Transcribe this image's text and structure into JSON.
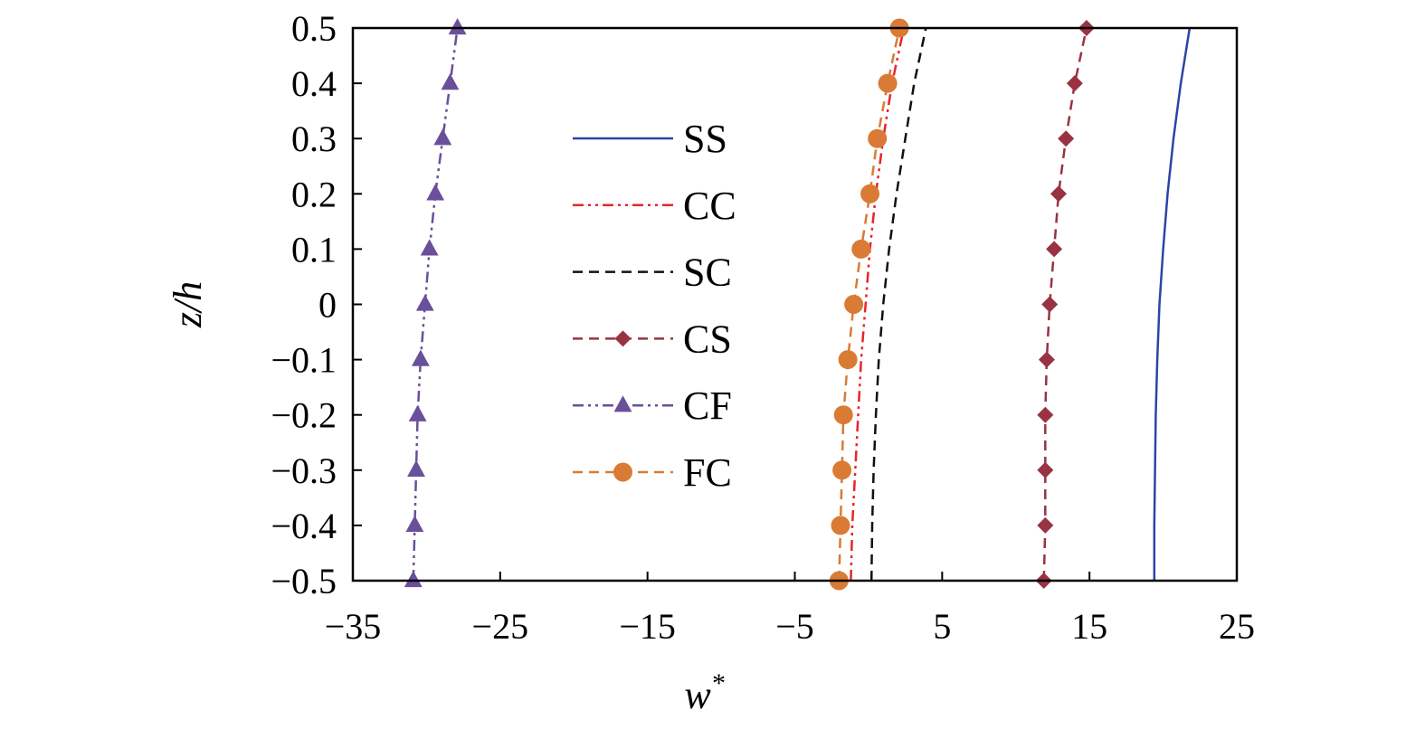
{
  "chart_data": {
    "type": "line",
    "title": "",
    "xlabel": "w",
    "xlabel_sup": "*",
    "ylabel": "z/h",
    "xlim": [
      -35,
      25
    ],
    "ylim": [
      -0.5,
      0.5
    ],
    "xticks": [
      -35,
      -25,
      -15,
      -5,
      5,
      15,
      25
    ],
    "xtick_labels": [
      "−35",
      "−25",
      "−15",
      "−5",
      "5",
      "15",
      "25"
    ],
    "yticks": [
      0.5,
      0.4,
      0.3,
      0.2,
      0.1,
      0,
      -0.1,
      -0.2,
      -0.3,
      -0.4,
      -0.5
    ],
    "ytick_labels": [
      "0.5",
      "0.4",
      "0.3",
      "0.2",
      "0.1",
      "0",
      "−0.1",
      "−0.2",
      "−0.3",
      "−0.4",
      "−0.5"
    ],
    "grid": false,
    "legend_position": "top-center",
    "series": [
      {
        "name": "SS",
        "color": "#2a46a4",
        "dash": "solid",
        "marker": "none",
        "x": [
          19.4,
          19.4,
          19.45,
          19.5,
          19.6,
          19.75,
          20.0,
          20.3,
          20.7,
          21.2,
          21.8
        ],
        "y": [
          -0.5,
          -0.4,
          -0.3,
          -0.2,
          -0.1,
          0,
          0.1,
          0.2,
          0.3,
          0.4,
          0.5
        ]
      },
      {
        "name": "CC",
        "color": "#e8242c",
        "dash": "dashdotdot",
        "marker": "none",
        "x": [
          -1.2,
          -1.1,
          -0.9,
          -0.7,
          -0.5,
          -0.2,
          0.1,
          0.5,
          1.0,
          1.6,
          2.4
        ],
        "y": [
          -0.5,
          -0.4,
          -0.3,
          -0.2,
          -0.1,
          0,
          0.1,
          0.2,
          0.3,
          0.4,
          0.5
        ]
      },
      {
        "name": "SC",
        "color": "#111111",
        "dash": "dashed",
        "marker": "none",
        "x": [
          0.2,
          0.25,
          0.35,
          0.5,
          0.7,
          1.0,
          1.4,
          1.9,
          2.5,
          3.1,
          3.9
        ],
        "y": [
          -0.5,
          -0.4,
          -0.3,
          -0.2,
          -0.1,
          0,
          0.1,
          0.2,
          0.3,
          0.4,
          0.5
        ]
      },
      {
        "name": "CS",
        "color": "#993344",
        "dash": "dashed",
        "marker": "diamond",
        "x": [
          11.9,
          12.0,
          12.0,
          12.0,
          12.1,
          12.3,
          12.6,
          12.9,
          13.4,
          14.0,
          14.8
        ],
        "y": [
          -0.5,
          -0.4,
          -0.3,
          -0.2,
          -0.1,
          0,
          0.1,
          0.2,
          0.3,
          0.4,
          0.5
        ]
      },
      {
        "name": "CF",
        "color": "#6a4f9a",
        "dash": "dashdotdot",
        "marker": "triangle",
        "x": [
          -30.9,
          -30.8,
          -30.7,
          -30.6,
          -30.4,
          -30.1,
          -29.8,
          -29.4,
          -28.9,
          -28.4,
          -27.9
        ],
        "y": [
          -0.5,
          -0.4,
          -0.3,
          -0.2,
          -0.1,
          0,
          0.1,
          0.2,
          0.3,
          0.4,
          0.5
        ]
      },
      {
        "name": "FC",
        "color": "#d97b35",
        "dash": "dashed",
        "marker": "circle",
        "x": [
          -2.0,
          -1.9,
          -1.8,
          -1.7,
          -1.4,
          -1.0,
          -0.5,
          0.1,
          0.6,
          1.3,
          2.1
        ],
        "y": [
          -0.5,
          -0.4,
          -0.3,
          -0.2,
          -0.1,
          0,
          0.1,
          0.2,
          0.3,
          0.4,
          0.5
        ]
      }
    ]
  }
}
